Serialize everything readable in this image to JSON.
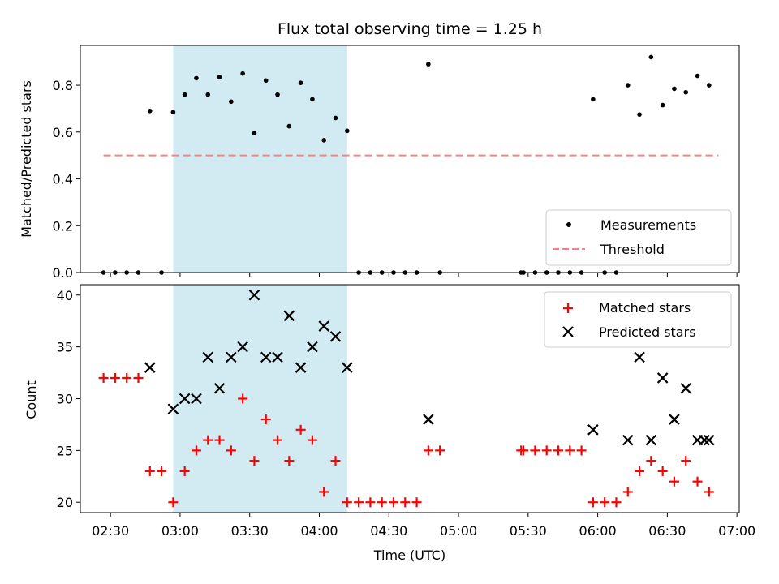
{
  "title": "Flux total observing time = 1.25 h",
  "chart_data": [
    {
      "type": "scatter",
      "ylabel": "Matched/Predicted stars",
      "ylim": [
        0,
        0.97
      ],
      "yticks": [
        "0.0",
        "0.2",
        "0.4",
        "0.6",
        "0.8"
      ],
      "ytick_values": [
        0,
        0.2,
        0.4,
        0.6,
        0.8
      ],
      "grid": false,
      "legend_position": "lower-right",
      "legend": [
        {
          "label": "Measurements",
          "marker": "dot",
          "color": "#000000"
        },
        {
          "label": "Threshold",
          "marker": "dashed-line",
          "color": "#ff7f7f"
        }
      ],
      "threshold": {
        "value": 0.5,
        "x_start": "02:27",
        "x_end": "06:52"
      },
      "series": [
        {
          "name": "Measurements",
          "color": "#000000",
          "points": [
            [
              "02:27",
              0
            ],
            [
              "02:32",
              0
            ],
            [
              "02:37",
              0
            ],
            [
              "02:42",
              0
            ],
            [
              "02:47",
              0.69
            ],
            [
              "02:52",
              0
            ],
            [
              "02:57",
              0.685
            ],
            [
              "03:02",
              0.76
            ],
            [
              "03:07",
              0.83
            ],
            [
              "03:12",
              0.76
            ],
            [
              "03:17",
              0.835
            ],
            [
              "03:22",
              0.73
            ],
            [
              "03:27",
              0.85
            ],
            [
              "03:32",
              0.595
            ],
            [
              "03:37",
              0.82
            ],
            [
              "03:42",
              0.76
            ],
            [
              "03:47",
              0.625
            ],
            [
              "03:52",
              0.81
            ],
            [
              "03:57",
              0.74
            ],
            [
              "04:02",
              0.565
            ],
            [
              "04:07",
              0.66
            ],
            [
              "04:12",
              0.605
            ],
            [
              "04:17",
              0
            ],
            [
              "04:22",
              0
            ],
            [
              "04:27",
              0
            ],
            [
              "04:32",
              0
            ],
            [
              "04:37",
              0
            ],
            [
              "04:42",
              0
            ],
            [
              "04:47",
              0.89
            ],
            [
              "04:52",
              0
            ],
            [
              "05:27",
              0
            ],
            [
              "05:28",
              0
            ],
            [
              "05:33",
              0
            ],
            [
              "05:38",
              0
            ],
            [
              "05:43",
              0
            ],
            [
              "05:48",
              0
            ],
            [
              "05:53",
              0
            ],
            [
              "05:58",
              0.74
            ],
            [
              "06:03",
              0
            ],
            [
              "06:08",
              0
            ],
            [
              "06:13",
              0.8
            ],
            [
              "06:18",
              0.675
            ],
            [
              "06:23",
              0.92
            ],
            [
              "06:28",
              0.715
            ],
            [
              "06:33",
              0.785
            ],
            [
              "06:38",
              0.77
            ],
            [
              "06:43",
              0.84
            ],
            [
              "06:48",
              0.8
            ]
          ]
        }
      ]
    },
    {
      "type": "scatter",
      "xlabel": "Time (UTC)",
      "ylabel": "Count",
      "ylim": [
        19,
        41
      ],
      "yticks": [
        "20",
        "25",
        "30",
        "35",
        "40"
      ],
      "ytick_values": [
        20,
        25,
        30,
        35,
        40
      ],
      "xlim": [
        "02:17",
        "07:01"
      ],
      "xticks": [
        "02:30",
        "03:00",
        "03:30",
        "04:00",
        "04:30",
        "05:00",
        "05:30",
        "06:00",
        "06:30",
        "07:00"
      ],
      "grid": false,
      "legend_position": "upper-right",
      "legend": [
        {
          "label": "Matched stars",
          "marker": "plus",
          "color": "#ff0000"
        },
        {
          "label": "Predicted stars",
          "marker": "x",
          "color": "#000000"
        }
      ],
      "series": [
        {
          "name": "Matched stars",
          "color": "#ff0000",
          "points": [
            [
              "02:27",
              32
            ],
            [
              "02:32",
              32
            ],
            [
              "02:37",
              32
            ],
            [
              "02:42",
              32
            ],
            [
              "02:47",
              23
            ],
            [
              "02:52",
              23
            ],
            [
              "02:57",
              20
            ],
            [
              "03:02",
              23
            ],
            [
              "03:07",
              25
            ],
            [
              "03:12",
              26
            ],
            [
              "03:17",
              26
            ],
            [
              "03:22",
              25
            ],
            [
              "03:27",
              30
            ],
            [
              "03:32",
              24
            ],
            [
              "03:37",
              28
            ],
            [
              "03:42",
              26
            ],
            [
              "03:47",
              24
            ],
            [
              "03:52",
              27
            ],
            [
              "03:57",
              26
            ],
            [
              "04:02",
              21
            ],
            [
              "04:07",
              24
            ],
            [
              "04:12",
              20
            ],
            [
              "04:17",
              20
            ],
            [
              "04:22",
              20
            ],
            [
              "04:27",
              20
            ],
            [
              "04:32",
              20
            ],
            [
              "04:37",
              20
            ],
            [
              "04:42",
              20
            ],
            [
              "04:47",
              25
            ],
            [
              "04:52",
              25
            ],
            [
              "05:27",
              25
            ],
            [
              "05:28",
              25
            ],
            [
              "05:33",
              25
            ],
            [
              "05:38",
              25
            ],
            [
              "05:43",
              25
            ],
            [
              "05:48",
              25
            ],
            [
              "05:53",
              25
            ],
            [
              "05:58",
              20
            ],
            [
              "06:03",
              20
            ],
            [
              "06:08",
              20
            ],
            [
              "06:13",
              21
            ],
            [
              "06:18",
              23
            ],
            [
              "06:23",
              24
            ],
            [
              "06:28",
              23
            ],
            [
              "06:33",
              22
            ],
            [
              "06:38",
              24
            ],
            [
              "06:43",
              22
            ],
            [
              "06:48",
              21
            ]
          ]
        },
        {
          "name": "Predicted stars",
          "color": "#000000",
          "points": [
            [
              "02:47",
              33
            ],
            [
              "02:57",
              29
            ],
            [
              "03:02",
              30
            ],
            [
              "03:07",
              30
            ],
            [
              "03:12",
              34
            ],
            [
              "03:17",
              31
            ],
            [
              "03:22",
              34
            ],
            [
              "03:27",
              35
            ],
            [
              "03:32",
              40
            ],
            [
              "03:37",
              34
            ],
            [
              "03:42",
              34
            ],
            [
              "03:47",
              38
            ],
            [
              "03:52",
              33
            ],
            [
              "03:57",
              35
            ],
            [
              "04:02",
              37
            ],
            [
              "04:07",
              36
            ],
            [
              "04:12",
              33
            ],
            [
              "04:47",
              28
            ],
            [
              "05:58",
              27
            ],
            [
              "06:13",
              26
            ],
            [
              "06:18",
              34
            ],
            [
              "06:23",
              26
            ],
            [
              "06:28",
              32
            ],
            [
              "06:33",
              28
            ],
            [
              "06:38",
              31
            ],
            [
              "06:43",
              26
            ],
            [
              "06:46",
              26
            ],
            [
              "06:48",
              26
            ]
          ]
        }
      ]
    }
  ],
  "shaded_region": {
    "start": "02:57",
    "end": "04:12",
    "color": "#add8e6"
  }
}
